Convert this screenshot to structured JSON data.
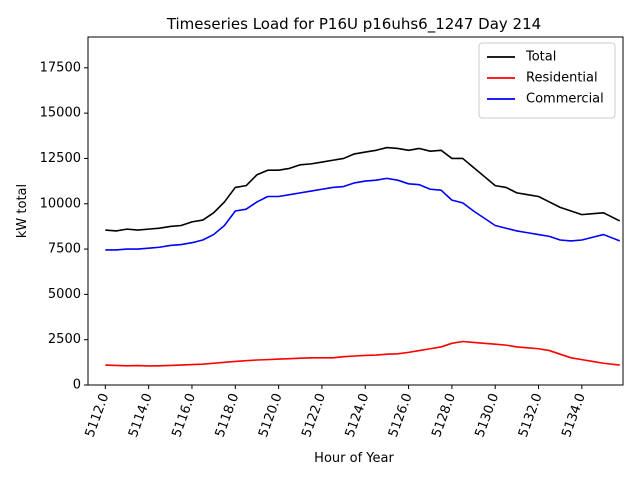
{
  "chart_data": {
    "type": "line",
    "title": "Timeseries Load for P16U p16uhs6_1247  Day 214",
    "xlabel": "Hour of Year",
    "ylabel": "kW total",
    "xlim": [
      5111.2,
      5135.9
    ],
    "ylim": [
      0,
      19200
    ],
    "xticks": [
      5112,
      5114,
      5116,
      5118,
      5120,
      5122,
      5124,
      5126,
      5128,
      5130,
      5132,
      5134
    ],
    "xtick_labels": [
      "5112.0",
      "5114.0",
      "5116.0",
      "5118.0",
      "5120.0",
      "5122.0",
      "5124.0",
      "5126.0",
      "5128.0",
      "5130.0",
      "5132.0",
      "5134.0"
    ],
    "yticks": [
      0,
      2500,
      5000,
      7500,
      10000,
      12500,
      15000,
      17500
    ],
    "ytick_labels": [
      "0",
      "2500",
      "5000",
      "7500",
      "10000",
      "12500",
      "15000",
      "17500"
    ],
    "legend_position": "top-right",
    "series": [
      {
        "name": "Total",
        "color": "#000000",
        "x": [
          5112,
          5112.5,
          5113,
          5113.5,
          5114,
          5114.5,
          5115,
          5115.5,
          5116,
          5116.5,
          5117,
          5117.5,
          5118,
          5118.5,
          5119,
          5119.5,
          5120,
          5120.5,
          5121,
          5121.5,
          5122,
          5122.5,
          5123,
          5123.5,
          5124,
          5124.5,
          5125,
          5125.5,
          5126,
          5126.5,
          5127,
          5127.5,
          5128,
          5128.5,
          5129,
          5129.5,
          5130,
          5130.5,
          5131,
          5131.5,
          5132,
          5132.5,
          5133,
          5133.5,
          5134,
          5134.5,
          5135,
          5135.75
        ],
        "values": [
          8550,
          8500,
          8600,
          8550,
          8600,
          8650,
          8750,
          8800,
          9000,
          9100,
          9500,
          10100,
          10900,
          11000,
          11600,
          11850,
          11850,
          11950,
          12150,
          12200,
          12300,
          12400,
          12500,
          12750,
          12850,
          12950,
          13100,
          13050,
          12950,
          13050,
          12900,
          12950,
          12500,
          12500,
          12000,
          11500,
          11000,
          10900,
          10600,
          10500,
          10400,
          10100,
          9800,
          9600,
          9400,
          9450,
          9500,
          9050
        ]
      },
      {
        "name": "Residential",
        "color": "#ff0000",
        "x": [
          5112,
          5112.5,
          5113,
          5113.5,
          5114,
          5114.5,
          5115,
          5115.5,
          5116,
          5116.5,
          5117,
          5117.5,
          5118,
          5118.5,
          5119,
          5119.5,
          5120,
          5120.5,
          5121,
          5121.5,
          5122,
          5122.5,
          5123,
          5123.5,
          5124,
          5124.5,
          5125,
          5125.5,
          5126,
          5126.5,
          5127,
          5127.5,
          5128,
          5128.5,
          5129,
          5129.5,
          5130,
          5130.5,
          5131,
          5131.5,
          5132,
          5132.5,
          5133,
          5133.5,
          5134,
          5134.5,
          5135,
          5135.75
        ],
        "values": [
          1100,
          1080,
          1060,
          1070,
          1050,
          1060,
          1080,
          1100,
          1130,
          1150,
          1200,
          1250,
          1300,
          1340,
          1380,
          1400,
          1430,
          1450,
          1480,
          1500,
          1500,
          1500,
          1560,
          1600,
          1630,
          1650,
          1700,
          1720,
          1800,
          1900,
          2000,
          2100,
          2300,
          2400,
          2350,
          2300,
          2250,
          2200,
          2100,
          2050,
          2000,
          1900,
          1700,
          1500,
          1400,
          1300,
          1200,
          1100
        ]
      },
      {
        "name": "Commercial",
        "color": "#0000ff",
        "x": [
          5112,
          5112.5,
          5113,
          5113.5,
          5114,
          5114.5,
          5115,
          5115.5,
          5116,
          5116.5,
          5117,
          5117.5,
          5118,
          5118.5,
          5119,
          5119.5,
          5120,
          5120.5,
          5121,
          5121.5,
          5122,
          5122.5,
          5123,
          5123.5,
          5124,
          5124.5,
          5125,
          5125.5,
          5126,
          5126.5,
          5127,
          5127.5,
          5128,
          5128.5,
          5129,
          5129.5,
          5130,
          5130.5,
          5131,
          5131.5,
          5132,
          5132.5,
          5133,
          5133.5,
          5134,
          5134.5,
          5135,
          5135.75
        ],
        "values": [
          7450,
          7450,
          7500,
          7500,
          7550,
          7600,
          7700,
          7750,
          7850,
          8000,
          8300,
          8800,
          9600,
          9700,
          10100,
          10400,
          10400,
          10500,
          10600,
          10700,
          10800,
          10900,
          10950,
          11150,
          11250,
          11300,
          11400,
          11300,
          11100,
          11050,
          10800,
          10750,
          10200,
          10050,
          9600,
          9200,
          8800,
          8650,
          8500,
          8400,
          8300,
          8200,
          8000,
          7950,
          8000,
          8150,
          8300,
          7950
        ]
      }
    ]
  }
}
